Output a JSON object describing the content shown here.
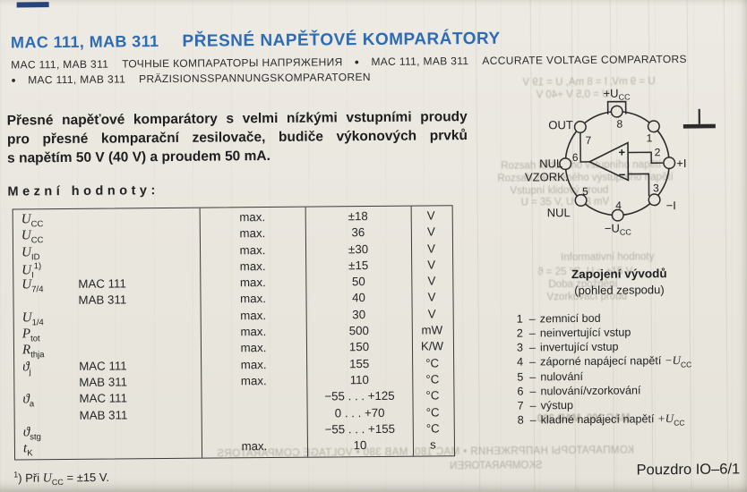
{
  "colors": {
    "title_blue": "#2d6cb5",
    "paper": "#e9e6de",
    "ink": "#262626",
    "tab_navy": "#27447f"
  },
  "header": {
    "model": "MAC 111, MAB 311",
    "title": "PŘESNÉ NAPĚŤOVÉ KOMPARÁTORY",
    "bullet": "●",
    "subtitles": [
      {
        "model": "MAC 111, MAB 311",
        "text": "ТОЧНЫЕ КОМПАРАТОРЫ НАПРЯЖЕНИЯ"
      },
      {
        "model": "MAC 111, MAB 311",
        "text": "ACCURATE VOLTAGE COMPARATORS"
      },
      {
        "model": "MAC 111, MAB 311",
        "text": "PRÄZISIONSSPANNUNGSKOMPARATOREN"
      }
    ]
  },
  "intro": {
    "lines": [
      "Přesné napěťové komparátory s velmi nízkými vstupními proudy",
      "pro přesné komparační zesilovače, budiče výkonových prvků",
      "s napětím 50 V (40 V) a proudem 50 mA."
    ]
  },
  "limits": {
    "heading": "Mezní hodnoty:",
    "rows": [
      {
        "sym": "U",
        "sub": "CC",
        "type": "",
        "max": "max.",
        "value": "±18",
        "unit": "V"
      },
      {
        "sym": "U",
        "sub": "CC",
        "type": "",
        "max": "max.",
        "value": "36",
        "unit": "V"
      },
      {
        "sym": "U",
        "sub": "ID",
        "type": "",
        "max": "max.",
        "value": "±30",
        "unit": "V"
      },
      {
        "sym": "U",
        "sub": "I",
        "sup": "1)",
        "type": "",
        "max": "max.",
        "value": "±15",
        "unit": "V"
      },
      {
        "sym": "U",
        "sub": "7/4",
        "type": "MAC 111",
        "max": "max.",
        "value": "50",
        "unit": "V"
      },
      {
        "sym": "",
        "sub": "",
        "type": "MAB 311",
        "max": "max.",
        "value": "40",
        "unit": "V"
      },
      {
        "sym": "U",
        "sub": "1/4",
        "type": "",
        "max": "max.",
        "value": "30",
        "unit": "V"
      },
      {
        "sym": "P",
        "sub": "tot",
        "type": "",
        "max": "max.",
        "value": "500",
        "unit": "mW"
      },
      {
        "sym": "R",
        "sub": "thja",
        "type": "",
        "max": "max.",
        "value": "150",
        "unit": "K/W"
      },
      {
        "sym": "ϑ",
        "sub": "j",
        "type": "MAC 111",
        "max": "max.",
        "value": "155",
        "unit": "°C"
      },
      {
        "sym": "",
        "sub": "",
        "type": "MAB 311",
        "max": "max.",
        "value": "110",
        "unit": "°C"
      },
      {
        "sym": "ϑ",
        "sub": "a",
        "type": "MAC 111",
        "max": "",
        "value": "−55 . . . +125",
        "unit": "°C"
      },
      {
        "sym": "",
        "sub": "",
        "type": "MAB 311",
        "max": "",
        "value": "0 . . . +70",
        "unit": "°C"
      },
      {
        "sym": "ϑ",
        "sub": "stg",
        "type": "",
        "max": "",
        "value": "−55 . . . +155",
        "unit": "°C"
      },
      {
        "sym": "t",
        "sub": "K",
        "type": "",
        "max": "max.",
        "value": "10",
        "unit": "s"
      }
    ]
  },
  "footnote": {
    "marker_sup": "1",
    "pre": ") Při ",
    "sym": "U",
    "sub": "CC",
    "post": " = ±15 V."
  },
  "package": {
    "label": "Pouzdro IO–6/1"
  },
  "pinout": {
    "title": "Zapojení vývodů",
    "subtitle": "(pohled zespodu)",
    "pins": [
      "1",
      "2",
      "3",
      "4",
      "5",
      "6",
      "7",
      "8"
    ],
    "labels": {
      "ucc_plus_base": "+U",
      "ucc_minus_base": "−U",
      "ucc_sub": "CC",
      "out": "OUT",
      "nul6": "NUL",
      "vzork": "VZORK.",
      "nul5": "NUL",
      "in_plus": "+I",
      "in_minus": "−I",
      "opamp_plus": "+",
      "opamp_minus": "−"
    },
    "legend": [
      {
        "num": "1",
        "dash": "–",
        "text": "zemnicí bod"
      },
      {
        "num": "2",
        "dash": "–",
        "text": "neinvertující vstup"
      },
      {
        "num": "3",
        "dash": "–",
        "text": "invertující vstup"
      },
      {
        "num": "4",
        "dash": "–",
        "text": "záporné napájecí napětí ",
        "sym": "−U",
        "symsub": "CC"
      },
      {
        "num": "5",
        "dash": "–",
        "text": "nulování"
      },
      {
        "num": "6",
        "dash": "–",
        "text": "nulování/vzorkování"
      },
      {
        "num": "7",
        "dash": "–",
        "text": "výstup"
      },
      {
        "num": "8",
        "dash": "–",
        "text": "kladné napájecí napětí ",
        "sym": "+U",
        "symsub": "CC"
      }
    ]
  },
  "bleedthrough": [
    {
      "text": "U = 9 mV, I = 8 mA, U = 19 V",
      "mirror": true
    },
    {
      "text": "U = 0,5 V +40 V",
      "mirror": true
    },
    {
      "text": "Rozsah klidového vstupního napětí",
      "mirror": false
    },
    {
      "text": "Rozsah zaručeného výstupního napětí",
      "mirror": false
    },
    {
      "text": "Vstupní klidový proud",
      "mirror": false
    },
    {
      "text": "U = 35 V, U = 3 mV",
      "mirror": false
    },
    {
      "text": "Informativní hodnoty",
      "mirror": false
    },
    {
      "text": "ϑ = 25 °C, U = ±15 V",
      "mirror": false
    },
    {
      "text": "Doba zpoždění",
      "mirror": false
    },
    {
      "text": "Vzorkovací proud",
      "mirror": false
    },
    {
      "text": "MAC 100, MAB 300",
      "mirror": true
    },
    {
      "text": "КОМПАРАТОРЫ НАПРЯЖЕНИЯ  •  MAC 180, MAB 380  •  VOLTAGE COMPARATORS",
      "mirror": true
    },
    {
      "text": "SKOMPARATOREN",
      "mirror": true
    }
  ]
}
